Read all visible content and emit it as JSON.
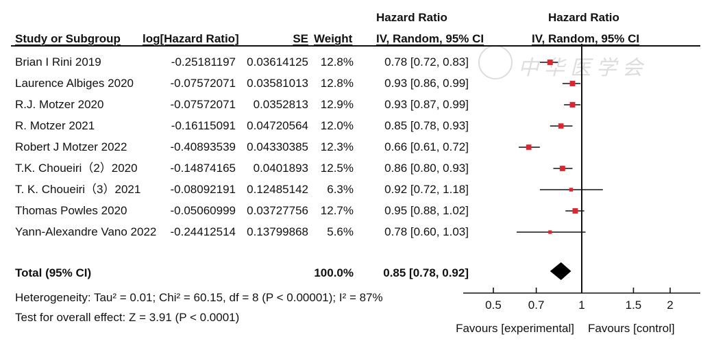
{
  "headers": {
    "hr_group_left": "Hazard Ratio",
    "hr_group_right": "Hazard Ratio",
    "study": "Study or Subgroup",
    "loghr": "log[Hazard Ratio]",
    "se": "SE",
    "weight": "Weight",
    "ci_left": "IV, Random, 95% CI",
    "ci_right": "IV, Random, 95% CI"
  },
  "rows": [
    {
      "study": "Brian I Rini 2019",
      "loghr": "-0.25181197",
      "se": "0.03614125",
      "weight": "12.8%",
      "ci": "0.78 [0.72, 0.83]"
    },
    {
      "study": "Laurence Albiges 2020",
      "loghr": "-0.07572071",
      "se": "0.03581013",
      "weight": "12.8%",
      "ci": "0.93 [0.86, 0.99]"
    },
    {
      "study": "R.J. Motzer 2020",
      "loghr": "-0.07572071",
      "se": "0.0352813",
      "weight": "12.9%",
      "ci": "0.93 [0.87, 0.99]"
    },
    {
      "study": "R. Motzer 2021",
      "loghr": "-0.16115091",
      "se": "0.04720564",
      "weight": "12.0%",
      "ci": "0.85 [0.78, 0.93]"
    },
    {
      "study": "Robert J Motzer 2022",
      "loghr": "-0.40893539",
      "se": "0.04330385",
      "weight": "12.3%",
      "ci": "0.66 [0.61, 0.72]"
    },
    {
      "study": "T.K. Choueiri（2）2020",
      "loghr": "-0.14874165",
      "se": "0.0401893",
      "weight": "12.5%",
      "ci": "0.86 [0.80, 0.93]"
    },
    {
      "study": "T. K. Choueiri（3）2021",
      "loghr": "-0.08092191",
      "se": "0.12485142",
      "weight": "6.3%",
      "ci": "0.92 [0.72, 1.18]"
    },
    {
      "study": "Thomas Powles  2020",
      "loghr": "-0.05060999",
      "se": "0.03727756",
      "weight": "12.7%",
      "ci": "0.95 [0.88, 1.02]"
    },
    {
      "study": "Yann-Alexandre Vano 2022",
      "loghr": "-0.24412514",
      "se": "0.13799868",
      "weight": "5.6%",
      "ci": "0.78 [0.60, 1.03]"
    }
  ],
  "total": {
    "label": "Total (95% CI)",
    "weight": "100.0%",
    "ci": "0.85 [0.78, 0.92]"
  },
  "heterogeneity": "Heterogeneity: Tau² = 0.01; Chi² = 60.15, df = 8 (P < 0.00001); I² = 87%",
  "overall_effect": "Test for overall effect: Z = 3.91 (P < 0.0001)",
  "favours_left": "Favours [experimental]",
  "favours_right": "Favours [control]",
  "watermark": "中华医学会",
  "colors": {
    "point": "#e8202a",
    "line": "#111111",
    "diamond": "#000000"
  },
  "chart_data": {
    "type": "scatter",
    "scale": "log",
    "xlim": [
      0.4,
      2.5
    ],
    "reference_line": 1,
    "ticks": [
      0.5,
      0.7,
      1,
      1.5,
      2
    ],
    "tick_labels": [
      "0.5",
      "0.7",
      "1",
      "1.5",
      "2"
    ],
    "points": [
      {
        "study": "Brian I Rini 2019",
        "hr": 0.78,
        "lo": 0.72,
        "hi": 0.83,
        "weight": 12.8
      },
      {
        "study": "Laurence Albiges 2020",
        "hr": 0.93,
        "lo": 0.86,
        "hi": 0.99,
        "weight": 12.8
      },
      {
        "study": "R.J. Motzer 2020",
        "hr": 0.93,
        "lo": 0.87,
        "hi": 0.99,
        "weight": 12.9
      },
      {
        "study": "R. Motzer 2021",
        "hr": 0.85,
        "lo": 0.78,
        "hi": 0.93,
        "weight": 12.0
      },
      {
        "study": "Robert J Motzer 2022",
        "hr": 0.66,
        "lo": 0.61,
        "hi": 0.72,
        "weight": 12.3
      },
      {
        "study": "T.K. Choueiri（2）2020",
        "hr": 0.86,
        "lo": 0.8,
        "hi": 0.93,
        "weight": 12.5
      },
      {
        "study": "T. K. Choueiri（3）2021",
        "hr": 0.92,
        "lo": 0.72,
        "hi": 1.18,
        "weight": 6.3
      },
      {
        "study": "Thomas Powles  2020",
        "hr": 0.95,
        "lo": 0.88,
        "hi": 1.02,
        "weight": 12.7
      },
      {
        "study": "Yann-Alexandre Vano 2022",
        "hr": 0.78,
        "lo": 0.6,
        "hi": 1.03,
        "weight": 5.6
      }
    ],
    "overall": {
      "hr": 0.85,
      "lo": 0.78,
      "hi": 0.92
    }
  }
}
